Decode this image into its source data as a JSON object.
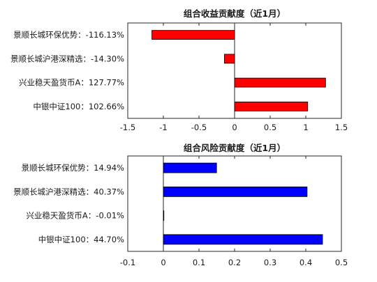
{
  "chart_data": [
    {
      "type": "bar",
      "orientation": "horizontal",
      "title": "组合收益贡献度（近1月）",
      "categories": [
        "景顺长城环保优势：-116.13%",
        "景顺长城沪港深精选：-14.30%",
        "兴业稳天盈货币A：127.77%",
        "中银中证100：102.66%"
      ],
      "values": [
        -1.1613,
        -0.143,
        1.2777,
        1.0266
      ],
      "xlim": [
        -1.5,
        1.5
      ],
      "xticks": [
        "-1.5",
        "-1",
        "-0.5",
        "0",
        "0.5",
        "1",
        "1.5"
      ],
      "bar_color": "#ff0000",
      "grid": false
    },
    {
      "type": "bar",
      "orientation": "horizontal",
      "title": "组合风险贡献度（近1月）",
      "categories": [
        "景顺长城环保优势：14.94%",
        "景顺长城沪港深精选：40.37%",
        "兴业稳天盈货币A：-0.01%",
        "中银中证100：44.70%"
      ],
      "values": [
        0.1494,
        0.4037,
        -0.0001,
        0.447
      ],
      "xlim": [
        -0.1,
        0.5
      ],
      "xticks": [
        "-0.1",
        "0",
        "0.1",
        "0.2",
        "0.3",
        "0.4",
        "0.5"
      ],
      "bar_color": "#0000ff",
      "grid": false
    }
  ]
}
